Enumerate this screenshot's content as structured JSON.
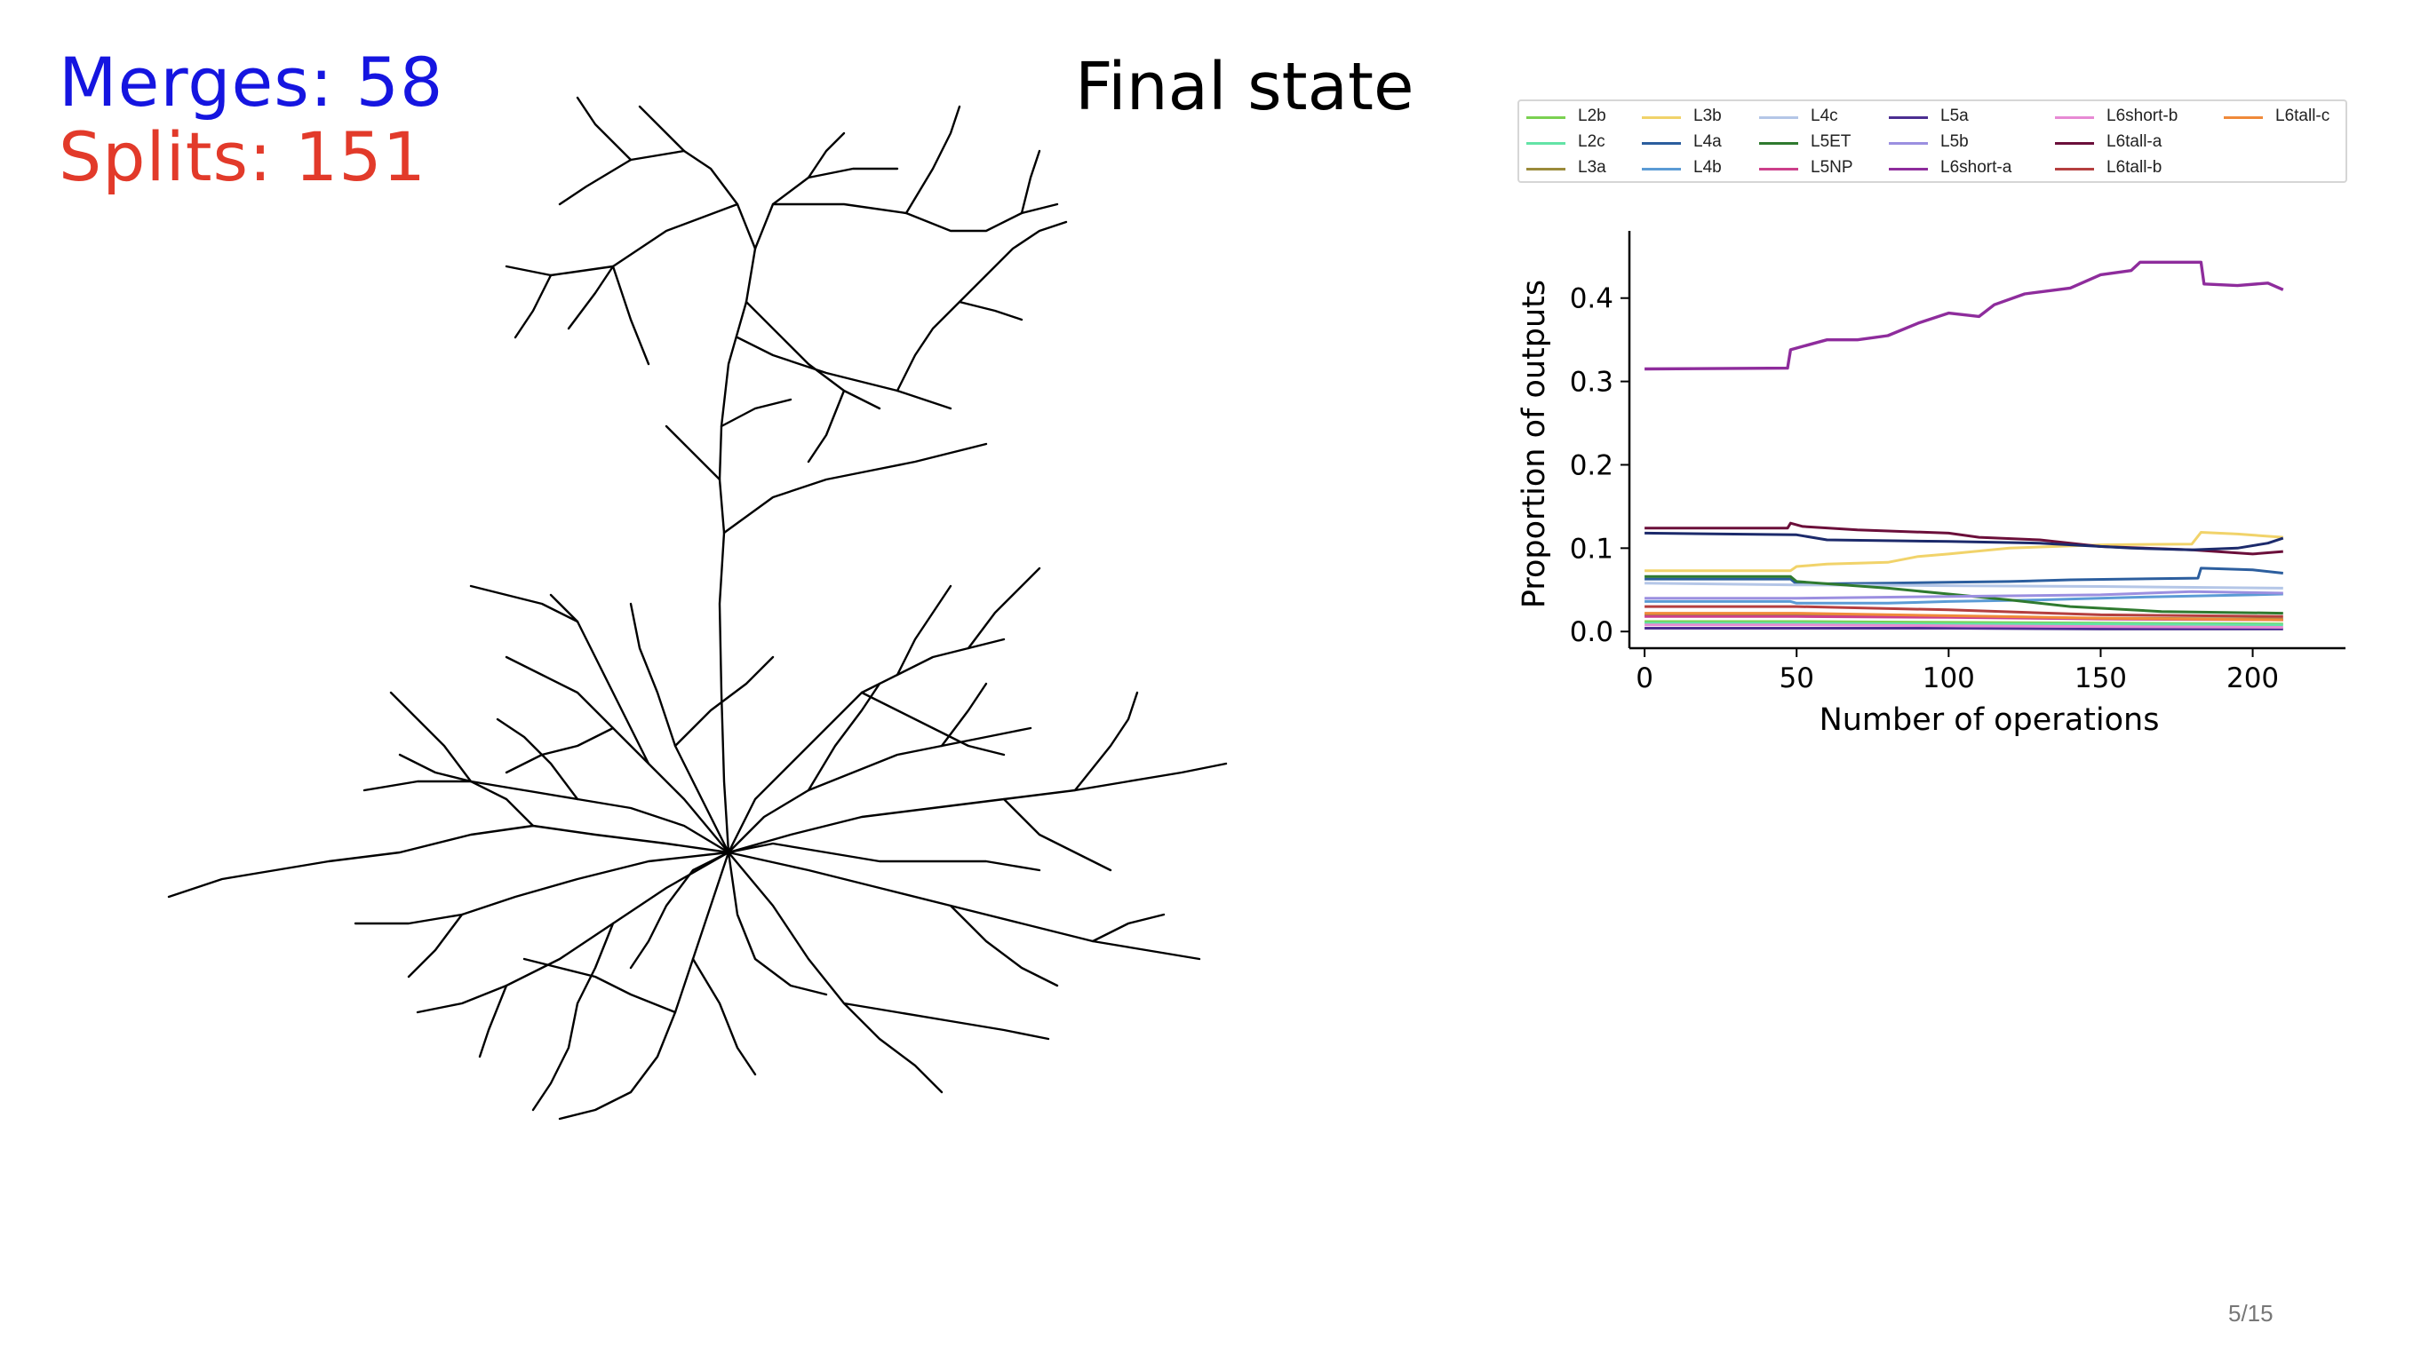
{
  "overlay": {
    "merges_text": "Merges: 58",
    "splits_text": "Splits: 151",
    "title": "Final state",
    "page_number": "5/15"
  },
  "colors": {
    "merges": "#1515e0",
    "splits": "#e23a2a",
    "neuron": "#000000"
  },
  "chart_data": {
    "type": "line",
    "title": "",
    "xlabel": "Number of operations",
    "ylabel": "Proportion of outputs",
    "xlim": [
      -5,
      220
    ],
    "ylim": [
      -0.02,
      0.47
    ],
    "xticks": [
      0,
      50,
      100,
      150,
      200
    ],
    "yticks": [
      0.0,
      0.1,
      0.2,
      0.3,
      0.4
    ],
    "xtick_labels": [
      "0",
      "50",
      "100",
      "150",
      "200"
    ],
    "ytick_labels": [
      "0.0",
      "0.1",
      "0.2",
      "0.3",
      "0.4"
    ],
    "grid": false,
    "legend_position": "top",
    "series": [
      {
        "name": "L2b",
        "color": "#7ad151",
        "points": [
          [
            0,
            0.012
          ],
          [
            50,
            0.012
          ],
          [
            100,
            0.011
          ],
          [
            150,
            0.01
          ],
          [
            210,
            0.009
          ]
        ]
      },
      {
        "name": "L2c",
        "color": "#63e3a6",
        "points": [
          [
            0,
            0.01
          ],
          [
            50,
            0.01
          ],
          [
            100,
            0.009
          ],
          [
            150,
            0.009
          ],
          [
            210,
            0.008
          ]
        ]
      },
      {
        "name": "L3a",
        "color": "#9a8a3a",
        "points": [
          [
            0,
            0.02
          ],
          [
            50,
            0.02
          ],
          [
            100,
            0.018
          ],
          [
            150,
            0.016
          ],
          [
            210,
            0.015
          ]
        ]
      },
      {
        "name": "L3b",
        "color": "#f1d36a",
        "points": [
          [
            0,
            0.073
          ],
          [
            48,
            0.073
          ],
          [
            50,
            0.078
          ],
          [
            60,
            0.081
          ],
          [
            80,
            0.083
          ],
          [
            90,
            0.09
          ],
          [
            100,
            0.093
          ],
          [
            120,
            0.1
          ],
          [
            150,
            0.104
          ],
          [
            180,
            0.105
          ],
          [
            183,
            0.119
          ],
          [
            195,
            0.117
          ],
          [
            210,
            0.113
          ]
        ]
      },
      {
        "name": "L4a",
        "color": "#2c5e9e",
        "points": [
          [
            0,
            0.063
          ],
          [
            48,
            0.063
          ],
          [
            50,
            0.057
          ],
          [
            80,
            0.058
          ],
          [
            100,
            0.059
          ],
          [
            120,
            0.06
          ],
          [
            140,
            0.062
          ],
          [
            182,
            0.064
          ],
          [
            183,
            0.076
          ],
          [
            200,
            0.074
          ],
          [
            210,
            0.07
          ]
        ]
      },
      {
        "name": "L4b",
        "color": "#5b9bd5",
        "points": [
          [
            0,
            0.036
          ],
          [
            48,
            0.036
          ],
          [
            50,
            0.034
          ],
          [
            80,
            0.034
          ],
          [
            100,
            0.036
          ],
          [
            130,
            0.038
          ],
          [
            160,
            0.041
          ],
          [
            200,
            0.044
          ],
          [
            210,
            0.045
          ]
        ]
      },
      {
        "name": "L4c",
        "color": "#b4c6e7",
        "points": [
          [
            0,
            0.058
          ],
          [
            50,
            0.056
          ],
          [
            100,
            0.055
          ],
          [
            150,
            0.054
          ],
          [
            210,
            0.052
          ]
        ]
      },
      {
        "name": "L5ET",
        "color": "#2f7a2f",
        "points": [
          [
            0,
            0.066
          ],
          [
            48,
            0.066
          ],
          [
            50,
            0.06
          ],
          [
            80,
            0.052
          ],
          [
            100,
            0.045
          ],
          [
            120,
            0.038
          ],
          [
            140,
            0.03
          ],
          [
            170,
            0.024
          ],
          [
            210,
            0.022
          ]
        ]
      },
      {
        "name": "L5NP",
        "color": "#cc3f8a",
        "points": [
          [
            0,
            0.018
          ],
          [
            50,
            0.018
          ],
          [
            100,
            0.017
          ],
          [
            150,
            0.015
          ],
          [
            210,
            0.014
          ]
        ]
      },
      {
        "name": "L5a",
        "color": "#4b2e91",
        "points": [
          [
            0,
            0.004
          ],
          [
            50,
            0.004
          ],
          [
            100,
            0.004
          ],
          [
            150,
            0.003
          ],
          [
            210,
            0.003
          ]
        ]
      },
      {
        "name": "L5b",
        "color": "#9b8fe0",
        "points": [
          [
            0,
            0.04
          ],
          [
            50,
            0.04
          ],
          [
            100,
            0.042
          ],
          [
            150,
            0.044
          ],
          [
            180,
            0.048
          ],
          [
            210,
            0.046
          ]
        ]
      },
      {
        "name": "L6short-a",
        "color": "#8e2c9c",
        "points": [
          [
            0,
            0.315
          ],
          [
            47,
            0.316
          ],
          [
            48,
            0.338
          ],
          [
            55,
            0.345
          ],
          [
            60,
            0.35
          ],
          [
            70,
            0.35
          ],
          [
            80,
            0.355
          ],
          [
            90,
            0.37
          ],
          [
            100,
            0.382
          ],
          [
            110,
            0.378
          ],
          [
            115,
            0.392
          ],
          [
            125,
            0.405
          ],
          [
            140,
            0.412
          ],
          [
            150,
            0.428
          ],
          [
            160,
            0.433
          ],
          [
            163,
            0.443
          ],
          [
            183,
            0.443
          ],
          [
            184,
            0.417
          ],
          [
            195,
            0.415
          ],
          [
            205,
            0.418
          ],
          [
            210,
            0.41
          ]
        ]
      },
      {
        "name": "L6short-b",
        "color": "#e78ad4",
        "points": [
          [
            0,
            0.008
          ],
          [
            50,
            0.008
          ],
          [
            100,
            0.007
          ],
          [
            150,
            0.006
          ],
          [
            210,
            0.005
          ]
        ]
      },
      {
        "name": "L6tall-a",
        "color": "#6b0f3a",
        "points": [
          [
            0,
            0.124
          ],
          [
            47,
            0.124
          ],
          [
            48,
            0.13
          ],
          [
            52,
            0.126
          ],
          [
            70,
            0.122
          ],
          [
            100,
            0.118
          ],
          [
            110,
            0.113
          ],
          [
            130,
            0.11
          ],
          [
            150,
            0.102
          ],
          [
            180,
            0.098
          ],
          [
            200,
            0.093
          ],
          [
            210,
            0.096
          ]
        ]
      },
      {
        "name": "L6tall-b",
        "color": "#b53f3f",
        "points": [
          [
            0,
            0.03
          ],
          [
            50,
            0.03
          ],
          [
            100,
            0.026
          ],
          [
            150,
            0.02
          ],
          [
            210,
            0.018
          ]
        ]
      },
      {
        "name": "L6tall-c",
        "color": "#f08a3a",
        "points": [
          [
            0,
            0.022
          ],
          [
            50,
            0.022
          ],
          [
            100,
            0.019
          ],
          [
            150,
            0.016
          ],
          [
            210,
            0.014
          ]
        ]
      },
      {
        "name": "",
        "color": "#1c2a6b",
        "points": [
          [
            0,
            0.118
          ],
          [
            50,
            0.116
          ],
          [
            60,
            0.11
          ],
          [
            100,
            0.108
          ],
          [
            130,
            0.106
          ],
          [
            160,
            0.1
          ],
          [
            180,
            0.098
          ],
          [
            195,
            0.1
          ],
          [
            205,
            0.106
          ],
          [
            210,
            0.112
          ]
        ]
      }
    ]
  }
}
